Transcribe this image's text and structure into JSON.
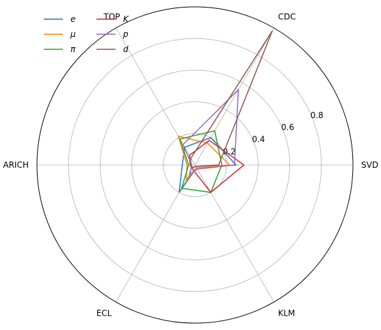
{
  "chart_data": {
    "type": "radar",
    "axes": [
      "SVD",
      "CDC",
      "TOP",
      "ARICH",
      "ECL",
      "KLM"
    ],
    "radial_ticks": [
      0.2,
      0.4,
      0.6,
      0.8
    ],
    "radial_tick_labels": [
      "0.2",
      "0.4",
      "0.6",
      "0.8"
    ],
    "rlim": [
      0,
      1.0
    ],
    "grid": true,
    "legend_position": "top-left",
    "series": [
      {
        "name": "e",
        "color": "#1f77b4",
        "values": [
          0.26,
          0.2,
          0.13,
          0.08,
          0.2,
          0.02
        ]
      },
      {
        "name": "μ",
        "color": "#ff7f0e",
        "values": [
          0.22,
          0.16,
          0.21,
          0.05,
          0.11,
          0.02
        ]
      },
      {
        "name": "π",
        "color": "#2ca02c",
        "values": [
          0.17,
          0.25,
          0.19,
          0.04,
          0.17,
          0.2
        ]
      },
      {
        "name": "K",
        "color": "#d62728",
        "values": [
          0.31,
          0.18,
          0.07,
          0.03,
          0.03,
          0.2
        ]
      },
      {
        "name": "p",
        "color": "#9467bd",
        "values": [
          0.25,
          0.55,
          0.15,
          0.02,
          0.07,
          0.03
        ]
      },
      {
        "name": "d",
        "color": "#8c564b",
        "values": [
          0.15,
          0.98,
          0.05,
          0.03,
          0.02,
          0.01
        ]
      }
    ]
  },
  "legend": {
    "e": "e",
    "mu": "μ",
    "pi": "π",
    "K": "K",
    "p": "p",
    "d": "d"
  }
}
